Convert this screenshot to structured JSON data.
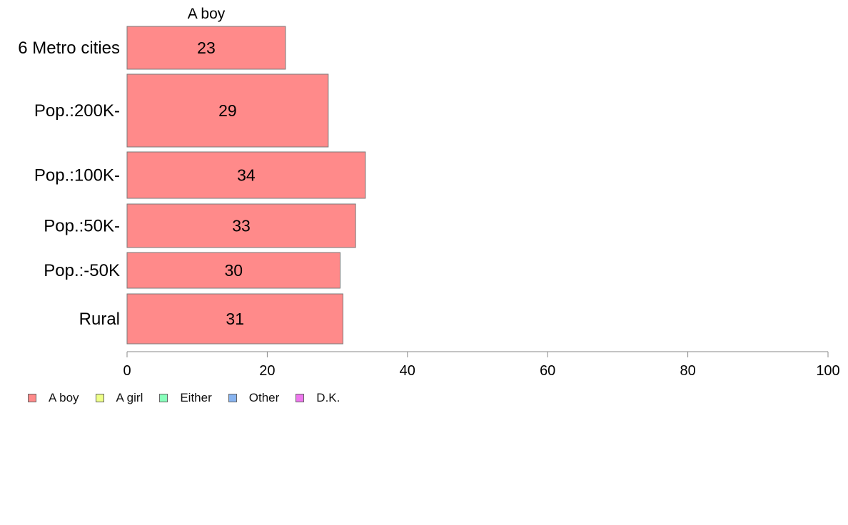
{
  "chart_data": {
    "type": "bar",
    "orientation": "horizontal",
    "title": "A boy",
    "xlabel": "",
    "ylabel": "",
    "xlim": [
      0,
      100
    ],
    "xticks": [
      0,
      20,
      40,
      60,
      80,
      100
    ],
    "grid": false,
    "bar_color": "#FF8A8A",
    "categories": [
      "6 Metro cities",
      "Pop.:200K-",
      "Pop.:100K-",
      "Pop.:50K-",
      "Pop.:-50K",
      "Rural"
    ],
    "series": [
      {
        "name": "A boy",
        "values": [
          22.6,
          28.7,
          34.0,
          32.6,
          30.4,
          30.8
        ],
        "data_labels": [
          "23",
          "29",
          "34",
          "33",
          "30",
          "31"
        ]
      }
    ],
    "legend": {
      "placement": "bottom-left",
      "items": [
        {
          "label": "A boy",
          "color": "#FF8A8A"
        },
        {
          "label": "A girl",
          "color": "#EEFF88"
        },
        {
          "label": "Either",
          "color": "#88FFBB"
        },
        {
          "label": "Other",
          "color": "#88B4F0"
        },
        {
          "label": "D.K.",
          "color": "#EE77EE"
        }
      ]
    }
  }
}
